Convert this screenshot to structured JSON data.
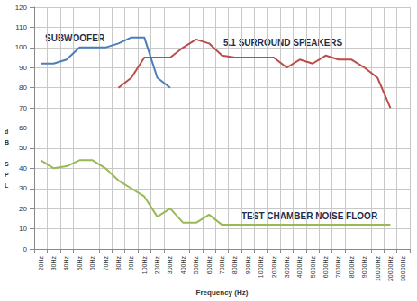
{
  "chart_data": {
    "type": "line",
    "xlabel": "Frequency (Hz)",
    "ylabel": "dB SPL",
    "categories": [
      "20Hz",
      "30Hz",
      "40Hz",
      "50Hz",
      "60Hz",
      "70Hz",
      "80Hz",
      "90Hz",
      "100Hz",
      "200Hz",
      "300Hz",
      "400Hz",
      "500Hz",
      "600Hz",
      "700Hz",
      "800Hz",
      "900Hz",
      "1000Hz",
      "2000Hz",
      "3000Hz",
      "4000Hz",
      "5000Hz",
      "6000Hz",
      "7000Hz",
      "8000Hz",
      "9000Hz",
      "10000Hz",
      "20000Hz",
      "30000Hz"
    ],
    "series": [
      {
        "name": "SUBWOOFER",
        "color": "#4a7ebb",
        "values": [
          92,
          92,
          94,
          100,
          100,
          100,
          102,
          105,
          105,
          85,
          80,
          null,
          null,
          null,
          null,
          null,
          null,
          null,
          null,
          null,
          null,
          null,
          null,
          null,
          null,
          null,
          null,
          null,
          null
        ]
      },
      {
        "name": "5.1 SURROUND SPEAKERS",
        "color": "#be4b48",
        "values": [
          null,
          null,
          null,
          null,
          null,
          null,
          80,
          85,
          95,
          95,
          95,
          100,
          104,
          102,
          96,
          95,
          95,
          95,
          95,
          90,
          94,
          92,
          96,
          94,
          94,
          90,
          85,
          70,
          null
        ]
      },
      {
        "name": "TEST CHAMBER NOISE FLOOR",
        "color": "#98b954",
        "values": [
          44,
          40,
          41,
          44,
          44,
          40,
          34,
          30,
          26,
          16,
          20,
          13,
          13,
          17,
          12,
          12,
          12,
          12,
          12,
          12,
          12,
          12,
          12,
          12,
          12,
          12,
          12,
          12,
          null
        ]
      }
    ],
    "ylim": [
      0,
      120
    ],
    "yticks": [
      0,
      10,
      20,
      30,
      40,
      50,
      60,
      70,
      80,
      90,
      100,
      110,
      120
    ],
    "grid": true
  }
}
